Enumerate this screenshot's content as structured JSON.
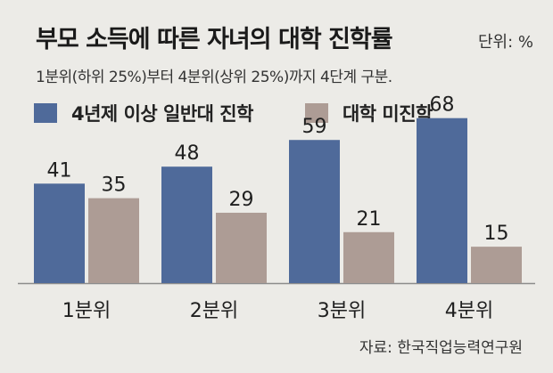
{
  "header": {
    "title": "부모 소득에 따른 자녀의 대학 진학률",
    "unit": "단위: %",
    "subtitle": "1분위(하위 25%)부터 4분위(상위 25%)까지 4단계 구분."
  },
  "source": "자료: 한국직업능력연구원",
  "colors": {
    "series1": "#4f6a9a",
    "series2": "#ad9c95",
    "background": "#ecebe7",
    "axis": "#8c8c8c"
  },
  "chart_data": {
    "type": "bar",
    "title": "부모 소득에 따른 자녀의 대학 진학률",
    "xlabel": "",
    "ylabel": "",
    "categories": [
      "1분위",
      "2분위",
      "3분위",
      "4분위"
    ],
    "series": [
      {
        "name": "4년제 이상 일반대 진학",
        "values": [
          41,
          48,
          59,
          68
        ]
      },
      {
        "name": "대학 미진학",
        "values": [
          35,
          29,
          21,
          15
        ]
      }
    ],
    "ylim": [
      0,
      80
    ],
    "grid": false,
    "legend": "top-left",
    "data_labels": true
  }
}
